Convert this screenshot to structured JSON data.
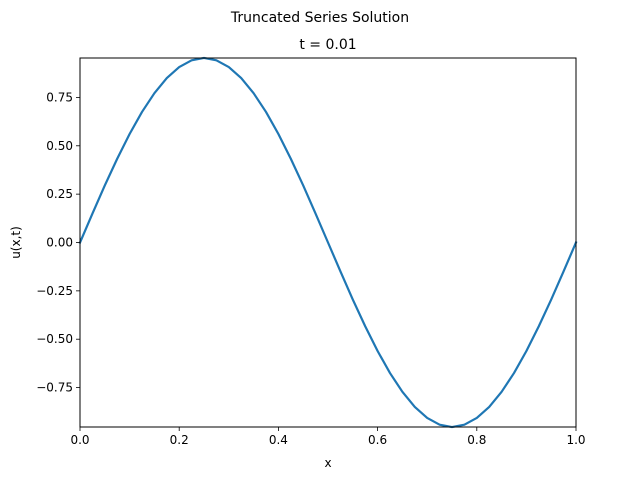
{
  "figure": {
    "suptitle": "Truncated Series Solution"
  },
  "chart_data": {
    "type": "line",
    "title": "t = 0.01",
    "xlabel": "x",
    "ylabel": "u(x,t)",
    "xlim": [
      0,
      1
    ],
    "ylim": [
      -0.9539,
      0.9539
    ],
    "xticks": [
      0,
      0.2,
      0.4,
      0.6,
      0.8,
      1.0
    ],
    "xtick_labels": [
      "0.0",
      "0.2",
      "0.4",
      "0.6",
      "0.8",
      "1.0"
    ],
    "yticks": [
      0.75,
      0.5,
      0.25,
      0,
      -0.25,
      -0.5,
      -0.75
    ],
    "ytick_labels": [
      "0.75",
      "0.50",
      "0.25",
      "0.00",
      "−0.25",
      "−0.50",
      "−0.75"
    ],
    "grid": false,
    "series": [
      {
        "color": "#1f77b4",
        "x": [
          0,
          0.025,
          0.05,
          0.075,
          0.1,
          0.125,
          0.15,
          0.175,
          0.2,
          0.225,
          0.25,
          0.275,
          0.3,
          0.325,
          0.35,
          0.375,
          0.4,
          0.425,
          0.45,
          0.475,
          0.5,
          0.525,
          0.55,
          0.575,
          0.6,
          0.625,
          0.65,
          0.675,
          0.7,
          0.725,
          0.75,
          0.775,
          0.8,
          0.825,
          0.85,
          0.875,
          0.9,
          0.925,
          0.95,
          0.975,
          1.0
        ],
        "y": [
          0,
          0.149,
          0.295,
          0.433,
          0.561,
          0.675,
          0.772,
          0.85,
          0.907,
          0.942,
          0.954,
          0.942,
          0.907,
          0.85,
          0.772,
          0.675,
          0.561,
          0.433,
          0.295,
          0.149,
          0,
          -0.149,
          -0.295,
          -0.433,
          -0.561,
          -0.675,
          -0.772,
          -0.85,
          -0.907,
          -0.942,
          -0.954,
          -0.942,
          -0.907,
          -0.85,
          -0.772,
          -0.675,
          -0.561,
          -0.433,
          -0.295,
          -0.149,
          0
        ]
      }
    ]
  }
}
